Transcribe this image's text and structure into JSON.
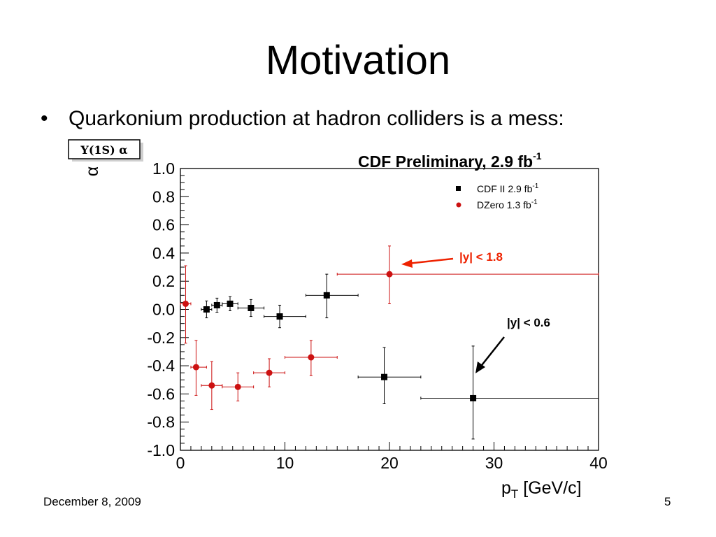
{
  "slide": {
    "title": "Motivation",
    "bullet_symbol": "•",
    "bullet_text": "Quarkonium production at hadron colliders is a mess:",
    "date": "December 8, 2009",
    "page_number": "5"
  },
  "colors": {
    "cdf": "#000000",
    "dzero": "#cc1111",
    "red_arrow": "#ee2200"
  },
  "chart_data": {
    "type": "scatter",
    "title": "CDF Preliminary, 2.9 fb",
    "title_superscript": "-1",
    "box_label": "Υ(1S) α",
    "ylabel": "α",
    "xlabel": "p",
    "xlabel_sub": "T",
    "xlabel_unit": " [GeV/c]",
    "xlim": [
      0,
      40
    ],
    "ylim": [
      -1.0,
      1.0
    ],
    "x_ticks": [
      "0",
      "10",
      "20",
      "30",
      "40"
    ],
    "y_ticks": [
      "1.0",
      "0.8",
      "0.6",
      "0.4",
      "0.2",
      "0.0",
      "-0.2",
      "-0.4",
      "-0.6",
      "-0.8",
      "-1.0"
    ],
    "legend_position": "top-right",
    "series": [
      {
        "name": "CDF II 2.9 fb",
        "name_superscript": "-1",
        "marker": "square",
        "color": "#000000",
        "points": [
          {
            "x": 2.5,
            "y": 0.0,
            "xlo": 2.0,
            "xhi": 3.0,
            "ylo": -0.06,
            "yhi": 0.06
          },
          {
            "x": 3.5,
            "y": 0.03,
            "xlo": 3.0,
            "xhi": 4.0,
            "ylo": -0.02,
            "yhi": 0.08
          },
          {
            "x": 4.75,
            "y": 0.04,
            "xlo": 4.0,
            "xhi": 5.5,
            "ylo": -0.01,
            "yhi": 0.09
          },
          {
            "x": 6.75,
            "y": 0.01,
            "xlo": 5.5,
            "xhi": 8.0,
            "ylo": -0.05,
            "yhi": 0.07
          },
          {
            "x": 9.5,
            "y": -0.05,
            "xlo": 8.0,
            "xhi": 12.0,
            "ylo": -0.13,
            "yhi": 0.03
          },
          {
            "x": 14.0,
            "y": 0.1,
            "xlo": 12.0,
            "xhi": 17.0,
            "ylo": -0.06,
            "yhi": 0.25
          },
          {
            "x": 19.5,
            "y": -0.48,
            "xlo": 17.0,
            "xhi": 23.0,
            "ylo": -0.67,
            "yhi": -0.27
          },
          {
            "x": 28.0,
            "y": -0.63,
            "xlo": 23.0,
            "xhi": 40.0,
            "ylo": -0.92,
            "yhi": -0.26
          }
        ]
      },
      {
        "name": "DZero 1.3 fb",
        "name_superscript": "-1",
        "marker": "circle",
        "color": "#cc1111",
        "points": [
          {
            "x": 0.5,
            "y": 0.04,
            "xlo": 0.0,
            "xhi": 1.0,
            "ylo": -0.24,
            "yhi": 0.31
          },
          {
            "x": 1.5,
            "y": -0.41,
            "xlo": 1.0,
            "xhi": 2.5,
            "ylo": -0.61,
            "yhi": -0.22
          },
          {
            "x": 3.0,
            "y": -0.54,
            "xlo": 2.0,
            "xhi": 4.0,
            "ylo": -0.71,
            "yhi": -0.37
          },
          {
            "x": 5.5,
            "y": -0.55,
            "xlo": 4.0,
            "xhi": 7.0,
            "ylo": -0.65,
            "yhi": -0.45
          },
          {
            "x": 8.5,
            "y": -0.45,
            "xlo": 7.0,
            "xhi": 10.0,
            "ylo": -0.55,
            "yhi": -0.35
          },
          {
            "x": 12.5,
            "y": -0.34,
            "xlo": 10.0,
            "xhi": 15.0,
            "ylo": -0.47,
            "yhi": -0.22
          },
          {
            "x": 20.0,
            "y": 0.25,
            "xlo": 15.0,
            "xhi": 40.0,
            "ylo": 0.04,
            "yhi": 0.45
          }
        ]
      }
    ],
    "annotations": [
      {
        "text": "|y| < 1.8",
        "color": "#ee2200",
        "points_to": {
          "x": 20.0,
          "y": 0.25
        }
      },
      {
        "text": "|y| < 0.6",
        "color": "#000000",
        "points_to": {
          "x": 28.0,
          "y": -0.45
        }
      }
    ]
  }
}
